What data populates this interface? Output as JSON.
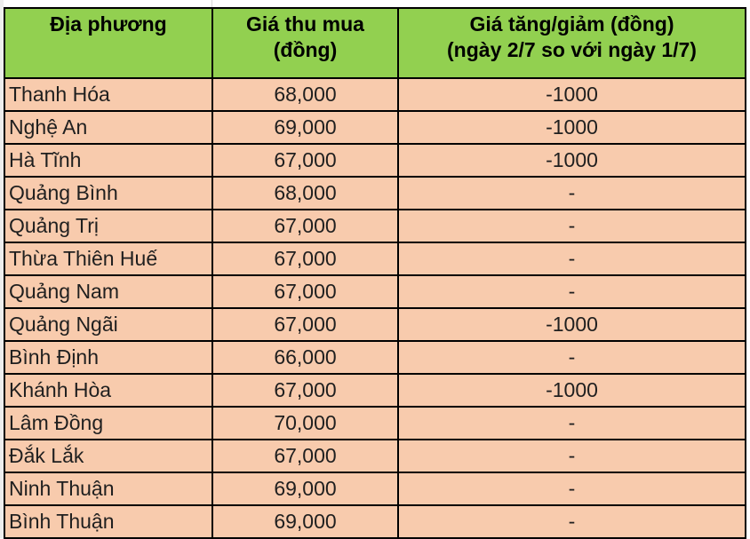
{
  "table": {
    "header_lines": [
      [
        "Địa phương"
      ],
      [
        "Giá thu mua",
        "(đồng)"
      ],
      [
        "Giá tăng/giảm (đồng)",
        "(ngày 2/7 so với ngày 1/7)"
      ]
    ],
    "rows": [
      [
        "Thanh Hóa",
        "68,000",
        "-1000"
      ],
      [
        "Nghệ An",
        "69,000",
        "-1000"
      ],
      [
        "Hà Tĩnh",
        "67,000",
        "-1000"
      ],
      [
        "Quảng Bình",
        "68,000",
        "-"
      ],
      [
        "Quảng Trị",
        "67,000",
        "-"
      ],
      [
        "Thừa Thiên Huế",
        "67,000",
        "-"
      ],
      [
        "Quảng Nam",
        "67,000",
        "-"
      ],
      [
        "Quảng Ngãi",
        "67,000",
        "-1000"
      ],
      [
        "Bình Định",
        "66,000",
        "-"
      ],
      [
        "Khánh Hòa",
        "67,000",
        "-1000"
      ],
      [
        "Lâm Đồng",
        "70,000",
        "-"
      ],
      [
        "Đắk Lắk",
        "67,000",
        "-"
      ],
      [
        "Ninh Thuận",
        "69,000",
        "-"
      ],
      [
        "Bình Thuận",
        "69,000",
        "-"
      ]
    ]
  },
  "colors": {
    "header": "#92d050",
    "rows": "#f8cbad"
  }
}
